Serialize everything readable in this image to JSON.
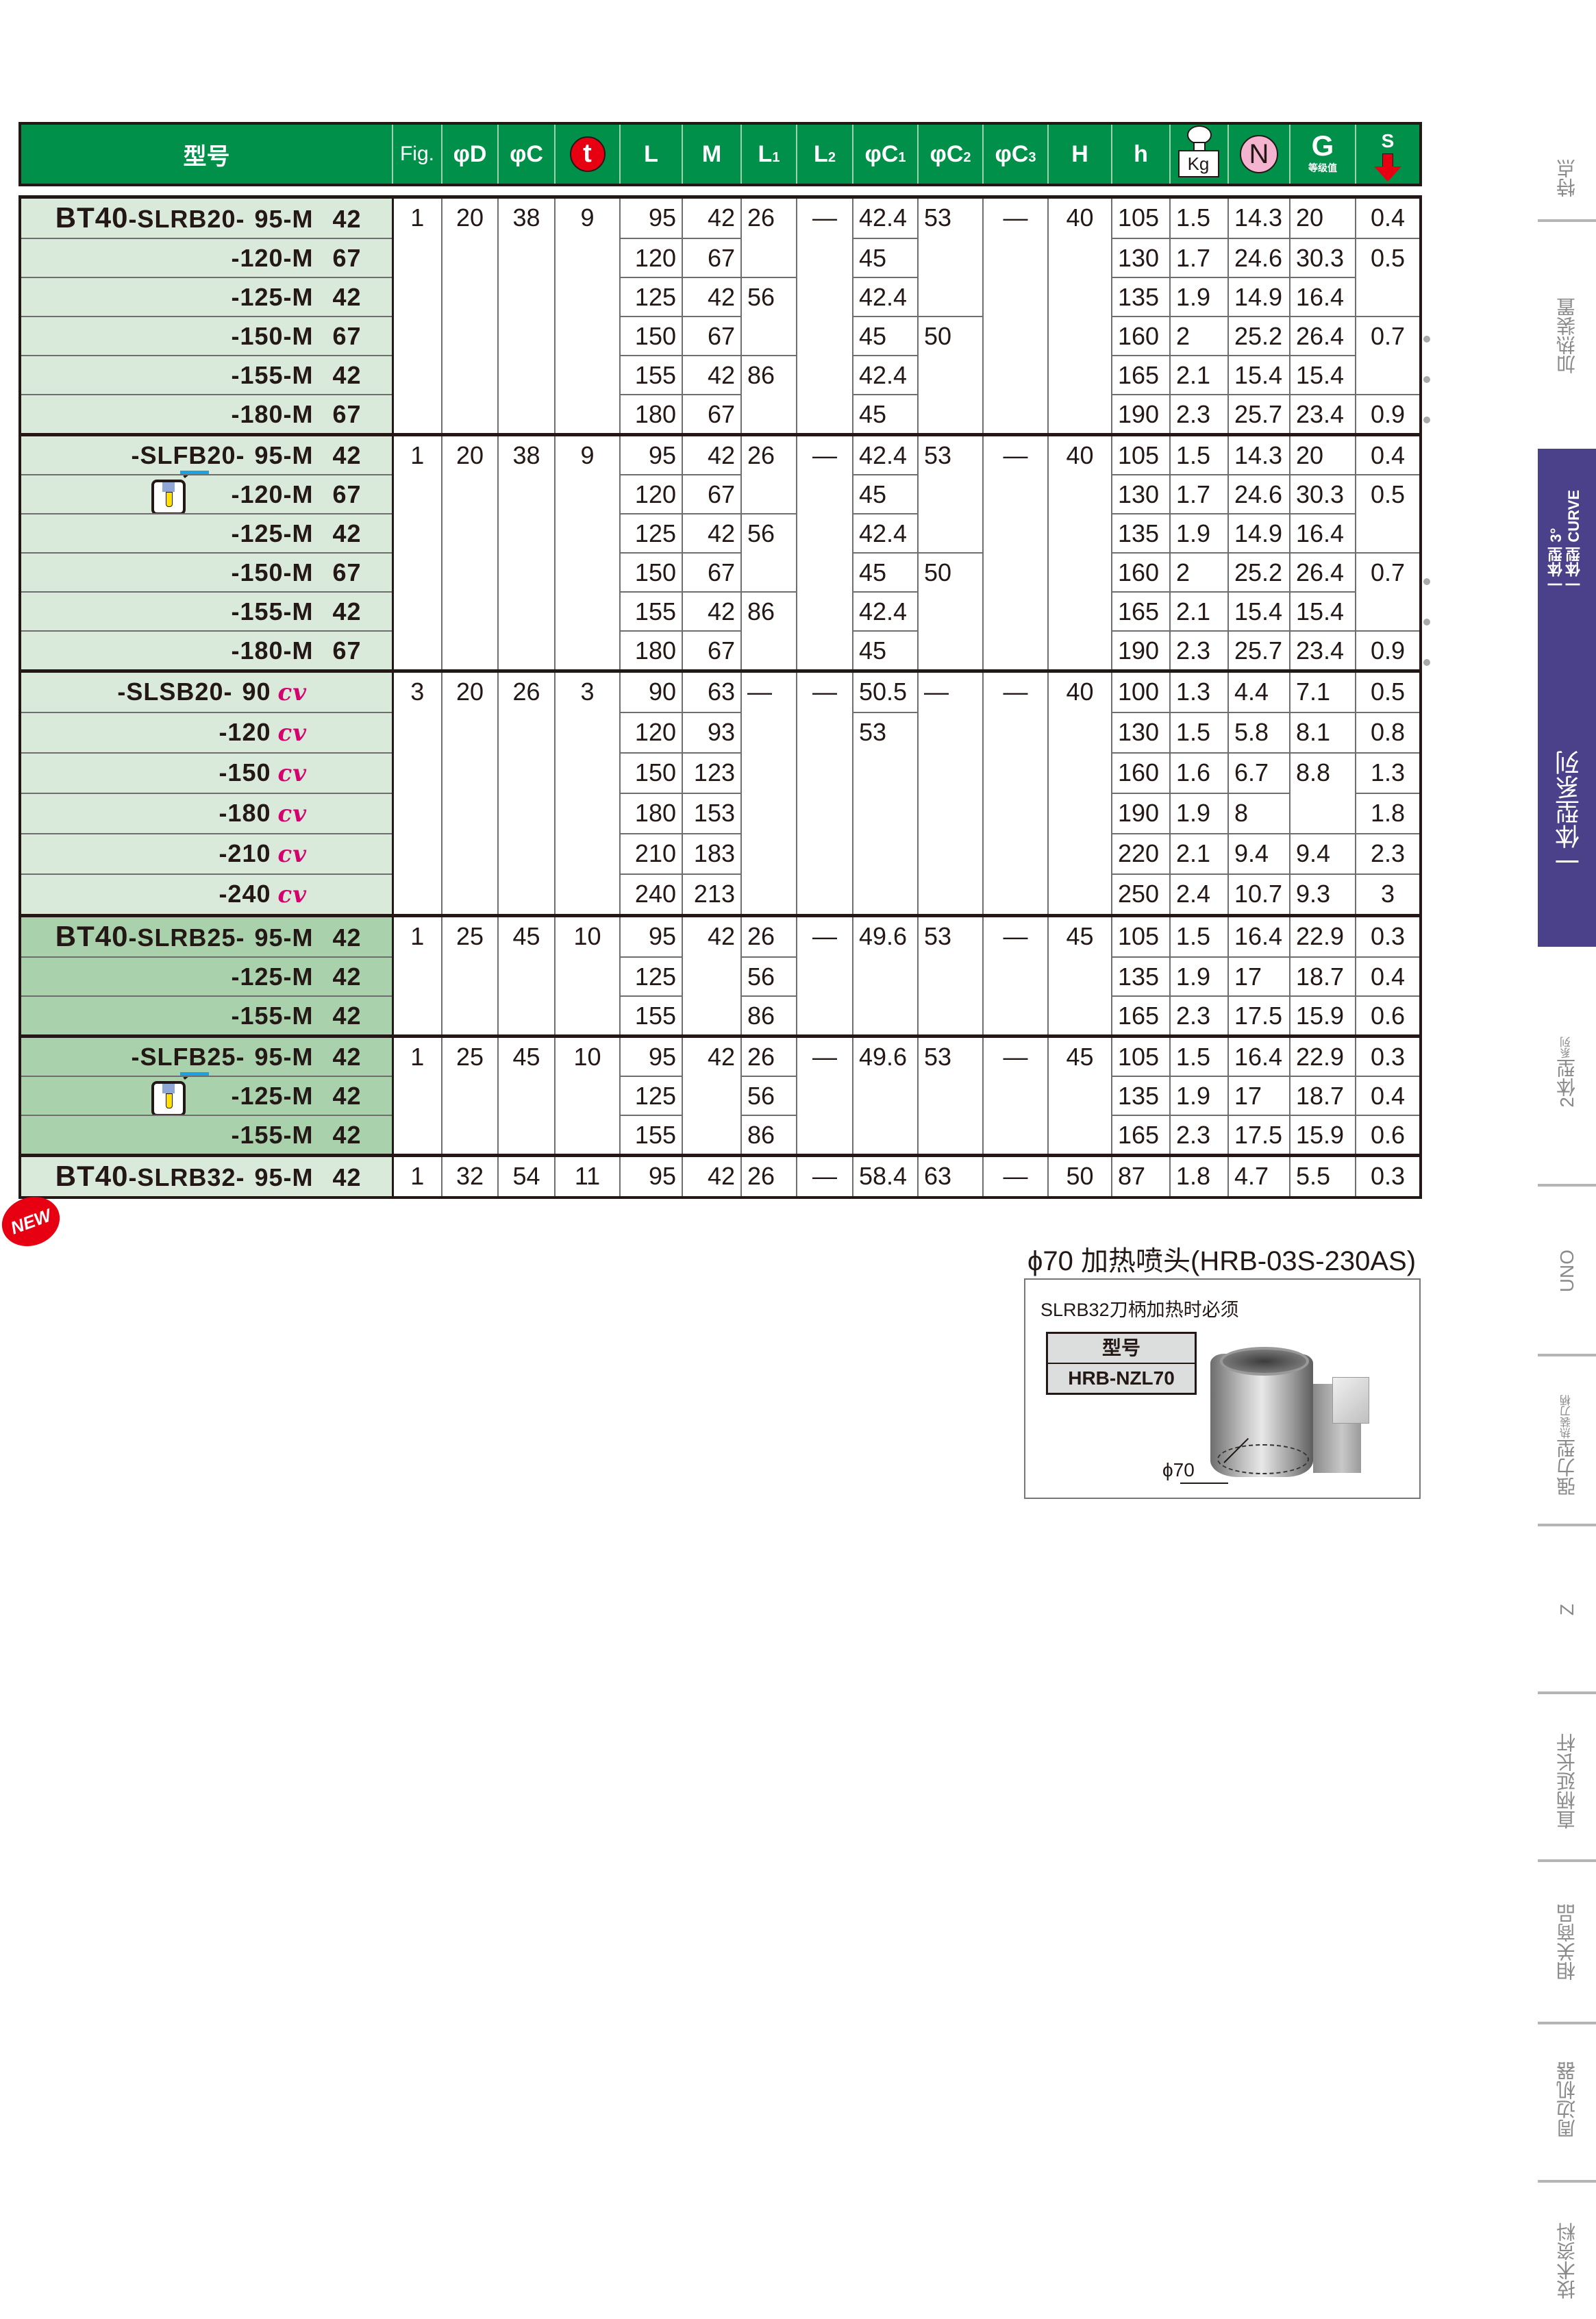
{
  "header": {
    "model": "型号",
    "fig": "Fig.",
    "d": "φD",
    "c": "φC",
    "t": "t",
    "l": "L",
    "m": "M",
    "l1": "L",
    "l1_sub": "1",
    "l2": "L",
    "l2_sub": "2",
    "c1": "φC",
    "c1_sub": "1",
    "c2": "φC",
    "c2_sub": "2",
    "c3": "φC",
    "c3_sub": "3",
    "h_upper": "H",
    "h_lower": "h",
    "kg": "Kg",
    "n": "N",
    "g": "G",
    "g_sub": "等级值",
    "s": "S",
    "t_badge_color": "#e60012",
    "n_badge_color": "#f4b3cf",
    "header_color": "#00904a"
  },
  "table": {
    "col_keys": [
      "fig",
      "d",
      "c",
      "t",
      "l",
      "m",
      "l1",
      "l2",
      "c1",
      "c2",
      "c3",
      "h_upper",
      "h",
      "kg",
      "n",
      "g",
      "s"
    ],
    "groups": [
      {
        "shade": "light",
        "holder_icon": false,
        "rows": [
          {
            "prefix": "BT40",
            "series": "-SLRB20-",
            "size": "95-M",
            "code": "42"
          },
          {
            "size": "-120-M",
            "code": "67"
          },
          {
            "size": "-125-M",
            "code": "42"
          },
          {
            "size": "-150-M",
            "code": "67"
          },
          {
            "size": "-155-M",
            "code": "42"
          },
          {
            "size": "-180-M",
            "code": "67"
          }
        ],
        "dots": [
          3,
          4,
          5
        ],
        "cols": {
          "fig": [
            [
              "1",
              6
            ]
          ],
          "d": [
            [
              "20",
              6
            ]
          ],
          "c": [
            [
              "38",
              6
            ]
          ],
          "t": [
            [
              "9",
              6
            ]
          ],
          "l": [
            "95",
            "120",
            "125",
            "150",
            "155",
            "180"
          ],
          "m": [
            "42",
            "67",
            "42",
            "67",
            "42",
            "67"
          ],
          "l1": [
            [
              "26",
              2
            ],
            [
              "56",
              2
            ],
            [
              "86",
              2
            ]
          ],
          "l2": [
            [
              "—",
              6
            ]
          ],
          "c1": [
            "42.4",
            "45",
            "42.4",
            "45",
            "42.4",
            "45"
          ],
          "c2": [
            [
              "53",
              3
            ],
            [
              "50",
              3
            ]
          ],
          "c3": [
            [
              "—",
              6
            ]
          ],
          "h_upper": [
            [
              "40",
              6
            ]
          ],
          "h": [
            "105",
            "130",
            "135",
            "160",
            "165",
            "190"
          ],
          "kg": [
            "1.5",
            "1.7",
            "1.9",
            "2",
            "2.1",
            "2.3"
          ],
          "n": [
            "14.3",
            "24.6",
            "14.9",
            "25.2",
            "15.4",
            "25.7"
          ],
          "g": [
            "20",
            "30.3",
            "16.4",
            "26.4",
            "15.4",
            "23.4"
          ],
          "s": [
            "0.4",
            [
              "0.5",
              2
            ],
            [
              "0.7",
              2
            ],
            "0.9"
          ]
        }
      },
      {
        "shade": "light",
        "holder_icon": true,
        "rows": [
          {
            "series": "-SLFB20-",
            "size": "95-M",
            "code": "42"
          },
          {
            "size": "-120-M",
            "code": "67"
          },
          {
            "size": "-125-M",
            "code": "42"
          },
          {
            "size": "-150-M",
            "code": "67"
          },
          {
            "size": "-155-M",
            "code": "42"
          },
          {
            "size": "-180-M",
            "code": "67"
          }
        ],
        "dots": [
          3,
          4,
          5
        ],
        "cols": {
          "fig": [
            [
              "1",
              6
            ]
          ],
          "d": [
            [
              "20",
              6
            ]
          ],
          "c": [
            [
              "38",
              6
            ]
          ],
          "t": [
            [
              "9",
              6
            ]
          ],
          "l": [
            "95",
            "120",
            "125",
            "150",
            "155",
            "180"
          ],
          "m": [
            "42",
            "67",
            "42",
            "67",
            "42",
            "67"
          ],
          "l1": [
            [
              "26",
              2
            ],
            [
              "56",
              2
            ],
            [
              "86",
              2
            ]
          ],
          "l2": [
            [
              "—",
              6
            ]
          ],
          "c1": [
            "42.4",
            "45",
            "42.4",
            "45",
            "42.4",
            "45"
          ],
          "c2": [
            [
              "53",
              3
            ],
            [
              "50",
              3
            ]
          ],
          "c3": [
            [
              "—",
              6
            ]
          ],
          "h_upper": [
            [
              "40",
              6
            ]
          ],
          "h": [
            "105",
            "130",
            "135",
            "160",
            "165",
            "190"
          ],
          "kg": [
            "1.5",
            "1.7",
            "1.9",
            "2",
            "2.1",
            "2.3"
          ],
          "n": [
            "14.3",
            "24.6",
            "14.9",
            "25.2",
            "15.4",
            "25.7"
          ],
          "g": [
            "20",
            "30.3",
            "16.4",
            "26.4",
            "15.4",
            "23.4"
          ],
          "s": [
            "0.4",
            [
              "0.5",
              2
            ],
            [
              "0.7",
              2
            ],
            "0.9"
          ]
        }
      },
      {
        "shade": "light",
        "holder_icon": false,
        "rows": [
          {
            "series": "-SLSB20-",
            "size": "90",
            "suffix": "cv"
          },
          {
            "size": "-120",
            "suffix": "cv"
          },
          {
            "size": "-150",
            "suffix": "cv"
          },
          {
            "size": "-180",
            "suffix": "cv"
          },
          {
            "size": "-210",
            "suffix": "cv"
          },
          {
            "size": "-240",
            "suffix": "cv"
          }
        ],
        "dots": [],
        "cols": {
          "fig": [
            [
              "3",
              6
            ]
          ],
          "d": [
            [
              "20",
              6
            ]
          ],
          "c": [
            [
              "26",
              6
            ]
          ],
          "t": [
            [
              "3",
              6
            ]
          ],
          "l": [
            "90",
            "120",
            "150",
            "180",
            "210",
            "240"
          ],
          "m": [
            "63",
            "93",
            "123",
            "153",
            "183",
            "213"
          ],
          "l1": [
            [
              "—",
              6
            ]
          ],
          "l2": [
            [
              "—",
              6
            ]
          ],
          "c1": [
            "50.5",
            [
              "53",
              5
            ]
          ],
          "c2": [
            [
              "—",
              6
            ]
          ],
          "c3": [
            [
              "—",
              6
            ]
          ],
          "h_upper": [
            [
              "40",
              6
            ]
          ],
          "h": [
            "100",
            "130",
            "160",
            "190",
            "220",
            "250"
          ],
          "kg": [
            "1.3",
            "1.5",
            "1.6",
            "1.9",
            "2.1",
            "2.4"
          ],
          "n": [
            "4.4",
            "5.8",
            "6.7",
            "8",
            "9.4",
            "10.7"
          ],
          "g": [
            "7.1",
            "8.1",
            [
              "8.8",
              2
            ],
            "9.4",
            "9.3"
          ],
          "s": [
            "0.5",
            "0.8",
            "1.3",
            "1.8",
            "2.3",
            "3"
          ]
        }
      },
      {
        "shade": "dark",
        "holder_icon": false,
        "rows": [
          {
            "prefix": "BT40",
            "series": "-SLRB25-",
            "size": "95-M",
            "code": "42"
          },
          {
            "size": "-125-M",
            "code": "42"
          },
          {
            "size": "-155-M",
            "code": "42"
          }
        ],
        "dots": [],
        "cols": {
          "fig": [
            [
              "1",
              3
            ]
          ],
          "d": [
            [
              "25",
              3
            ]
          ],
          "c": [
            [
              "45",
              3
            ]
          ],
          "t": [
            [
              "10",
              3
            ]
          ],
          "l": [
            "95",
            "125",
            "155"
          ],
          "m": [
            [
              "42",
              3
            ]
          ],
          "l1": [
            "26",
            "56",
            "86"
          ],
          "l2": [
            [
              "—",
              3
            ]
          ],
          "c1": [
            [
              "49.6",
              3
            ]
          ],
          "c2": [
            [
              "53",
              3
            ]
          ],
          "c3": [
            [
              "—",
              3
            ]
          ],
          "h_upper": [
            [
              "45",
              3
            ]
          ],
          "h": [
            "105",
            "135",
            "165"
          ],
          "kg": [
            "1.5",
            "1.9",
            "2.3"
          ],
          "n": [
            "16.4",
            "17",
            "17.5"
          ],
          "g": [
            "22.9",
            "18.7",
            "15.9"
          ],
          "s": [
            "0.3",
            "0.4",
            "0.6"
          ]
        }
      },
      {
        "shade": "dark",
        "holder_icon": true,
        "rows": [
          {
            "series": "-SLFB25-",
            "size": "95-M",
            "code": "42"
          },
          {
            "size": "-125-M",
            "code": "42"
          },
          {
            "size": "-155-M",
            "code": "42"
          }
        ],
        "dots": [],
        "cols": {
          "fig": [
            [
              "1",
              3
            ]
          ],
          "d": [
            [
              "25",
              3
            ]
          ],
          "c": [
            [
              "45",
              3
            ]
          ],
          "t": [
            [
              "10",
              3
            ]
          ],
          "l": [
            "95",
            "125",
            "155"
          ],
          "m": [
            [
              "42",
              3
            ]
          ],
          "l1": [
            "26",
            "56",
            "86"
          ],
          "l2": [
            [
              "—",
              3
            ]
          ],
          "c1": [
            [
              "49.6",
              3
            ]
          ],
          "c2": [
            [
              "53",
              3
            ]
          ],
          "c3": [
            [
              "—",
              3
            ]
          ],
          "h_upper": [
            [
              "45",
              3
            ]
          ],
          "h": [
            "105",
            "135",
            "165"
          ],
          "kg": [
            "1.5",
            "1.9",
            "2.3"
          ],
          "n": [
            "16.4",
            "17",
            "17.5"
          ],
          "g": [
            "22.9",
            "18.7",
            "15.9"
          ],
          "s": [
            "0.3",
            "0.4",
            "0.6"
          ]
        }
      },
      {
        "shade": "light",
        "holder_icon": false,
        "rows": [
          {
            "prefix": "BT40",
            "series": "-SLRB32-",
            "size": "95-M",
            "code": "42"
          }
        ],
        "dots": [],
        "cols": {
          "fig": [
            "1"
          ],
          "d": [
            "32"
          ],
          "c": [
            "54"
          ],
          "t": [
            "11"
          ],
          "l": [
            "95"
          ],
          "m": [
            "42"
          ],
          "l1": [
            "26"
          ],
          "l2": [
            "—"
          ],
          "c1": [
            "58.4"
          ],
          "c2": [
            "63"
          ],
          "c3": [
            "—"
          ],
          "h_upper": [
            "50"
          ],
          "h": [
            "87"
          ],
          "kg": [
            "1.8"
          ],
          "n": [
            "4.7"
          ],
          "g": [
            "5.5"
          ],
          "s": [
            "0.3"
          ]
        }
      }
    ]
  },
  "new_badge": "NEW",
  "nozzle": {
    "title": "ϕ70 加热喷头(HRB-03S-230AS)",
    "note": "SLRB32刀柄加热时必须",
    "table_header": "型号",
    "model": "HRB-NZL70",
    "diameter_label": "ϕ70"
  },
  "sidebar": {
    "active_color": "#4b418a",
    "items": [
      {
        "label": "特点"
      },
      {
        "label": "加热装置"
      },
      {
        "label": "一体型 3°",
        "label2": "一体型 CURVE",
        "label3": "一体型系列",
        "active": true
      },
      {
        "label": "2体型",
        "small": "系列"
      },
      {
        "label": "UNO"
      },
      {
        "label": "强力型",
        "small": "热装刀柄"
      },
      {
        "label": "Z"
      },
      {
        "label": "直柄延长杆"
      },
      {
        "label": "相关商品"
      },
      {
        "label": "周边机器"
      },
      {
        "label": "技术资料"
      }
    ]
  }
}
